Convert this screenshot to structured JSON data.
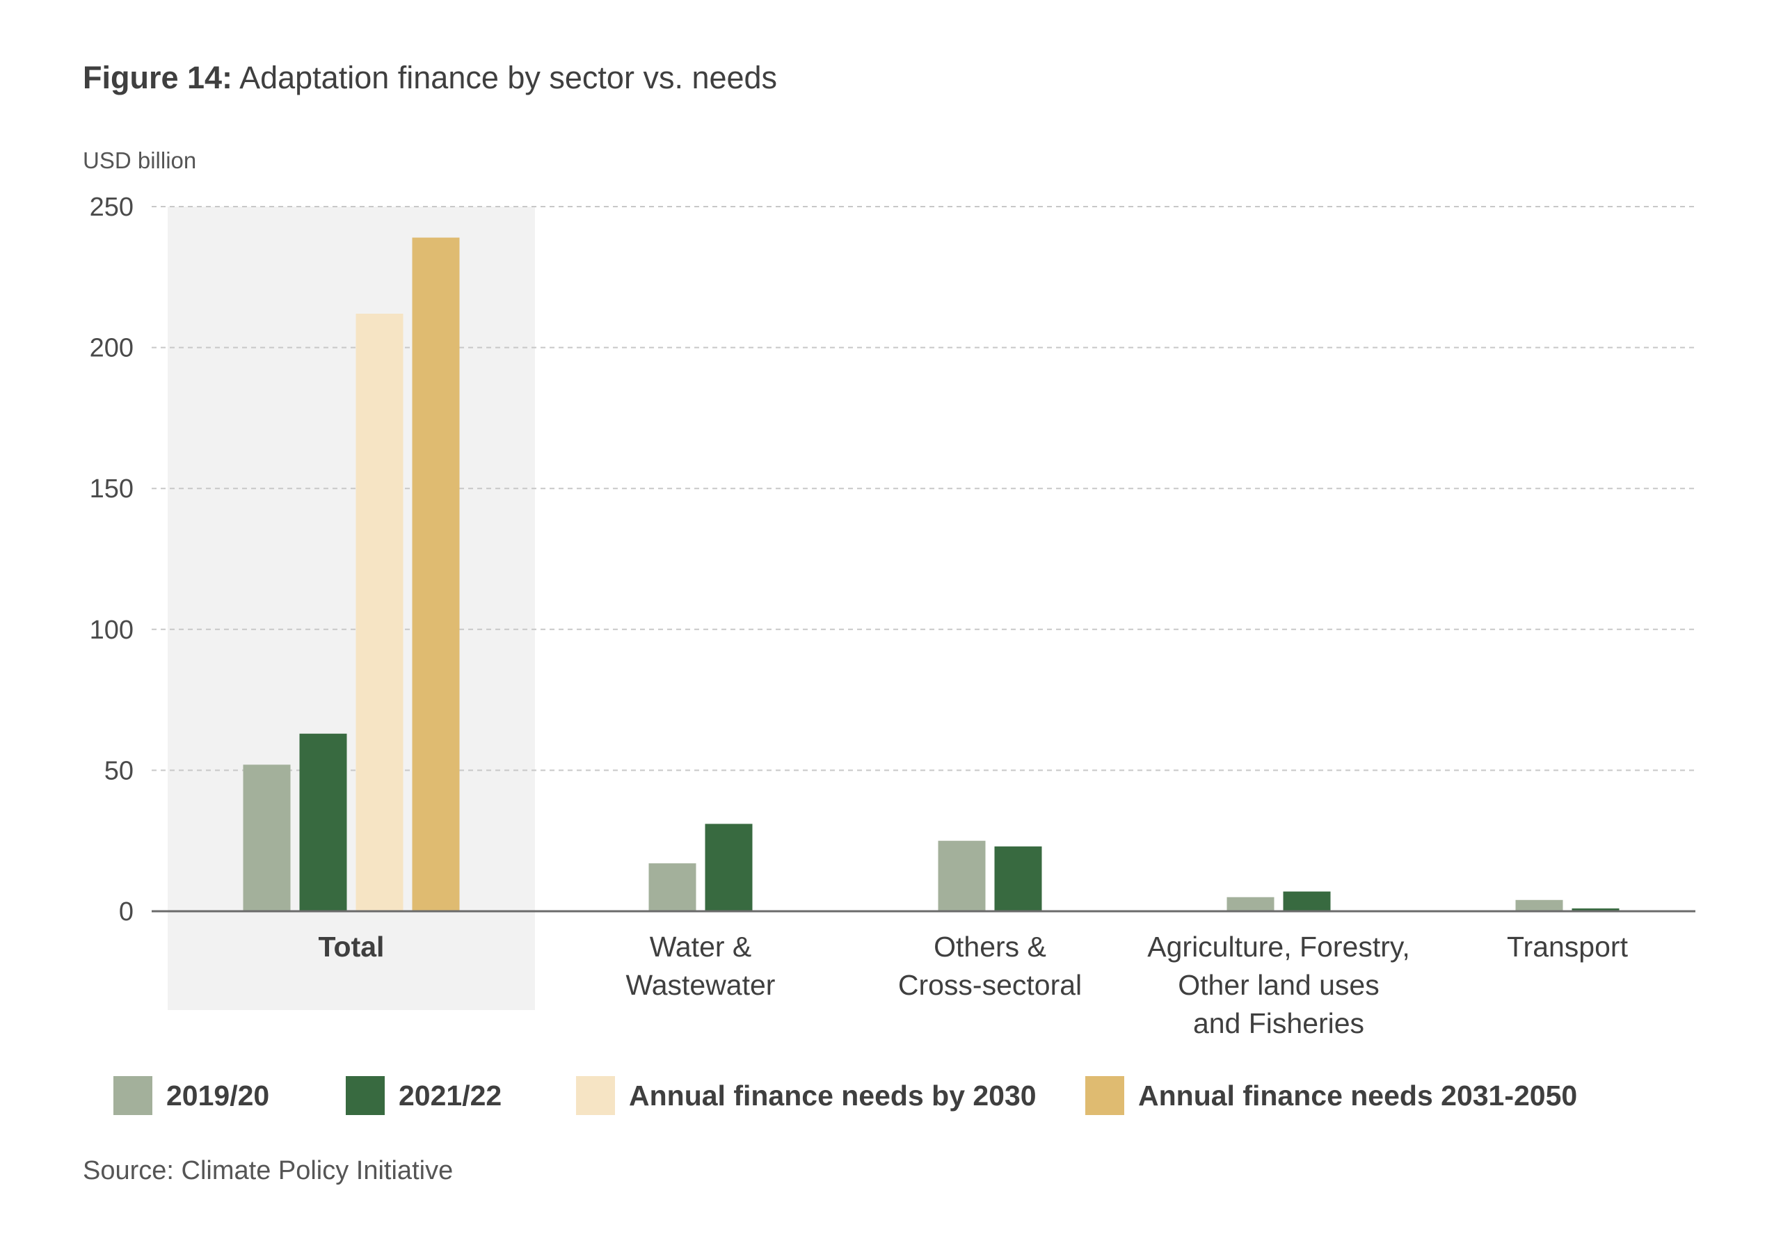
{
  "header": {
    "figure_label": "Figure 14:",
    "title_text": "Adaptation finance by sector vs. needs"
  },
  "chart_data": {
    "type": "bar",
    "ylabel": "USD billion",
    "ylim": [
      0,
      250
    ],
    "yticks": [
      0,
      50,
      100,
      150,
      200,
      250
    ],
    "grid": true,
    "legend_position": "bottom",
    "categories": [
      [
        "Total"
      ],
      [
        "Water &",
        "Wastewater"
      ],
      [
        "Others &",
        "Cross-sectoral"
      ],
      [
        "Agriculture, Forestry,",
        "Other land uses",
        "and Fisheries"
      ],
      [
        "Transport"
      ]
    ],
    "highlighted_category": "Total",
    "series": [
      {
        "name": "2019/20",
        "color": "#a3b09b",
        "values": [
          52,
          17,
          25,
          5,
          4
        ]
      },
      {
        "name": "2021/22",
        "color": "#386a40",
        "values": [
          63,
          31,
          23,
          7,
          1
        ]
      },
      {
        "name": "Annual finance needs by 2030",
        "color": "#f6e4c4",
        "values": [
          212,
          null,
          null,
          null,
          null
        ]
      },
      {
        "name": "Annual finance needs 2031-2050",
        "color": "#dfbb71",
        "values": [
          239,
          null,
          null,
          null,
          null
        ]
      }
    ]
  },
  "footer": {
    "source": "Source: Climate Policy Initiative"
  }
}
